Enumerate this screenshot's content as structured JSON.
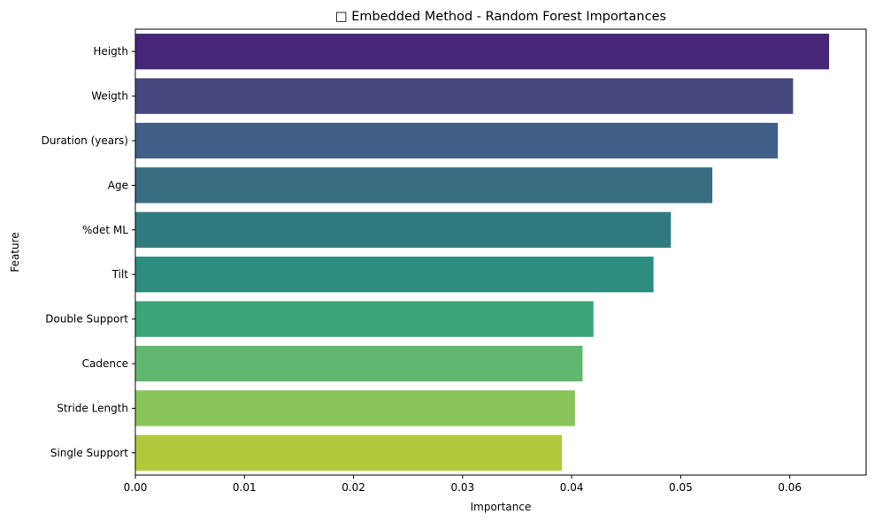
{
  "chart_data": {
    "type": "bar",
    "orientation": "horizontal",
    "title": "□ Embedded Method - Random Forest Importances",
    "xlabel": "Importance",
    "ylabel": "Feature",
    "xlim": [
      0,
      0.067
    ],
    "xticks": [
      "0.00",
      "0.01",
      "0.02",
      "0.03",
      "0.04",
      "0.05",
      "0.06"
    ],
    "grid": false,
    "palette": "viridis",
    "categories": [
      "Heigth",
      "Weigth",
      "Duration (years)",
      "Age",
      "%det ML",
      "Tilt",
      "Double Support",
      "Cadence",
      "Stride Length",
      "Single Support"
    ],
    "values": [
      0.0636,
      0.0603,
      0.0589,
      0.0529,
      0.0491,
      0.0475,
      0.042,
      0.041,
      0.0403,
      0.0391
    ],
    "colors": [
      "#482677",
      "#46487f",
      "#3f5f87",
      "#386d82",
      "#2f7b80",
      "#2c8c7e",
      "#3ca577",
      "#61b76f",
      "#88c45a",
      "#b2c83b"
    ]
  }
}
